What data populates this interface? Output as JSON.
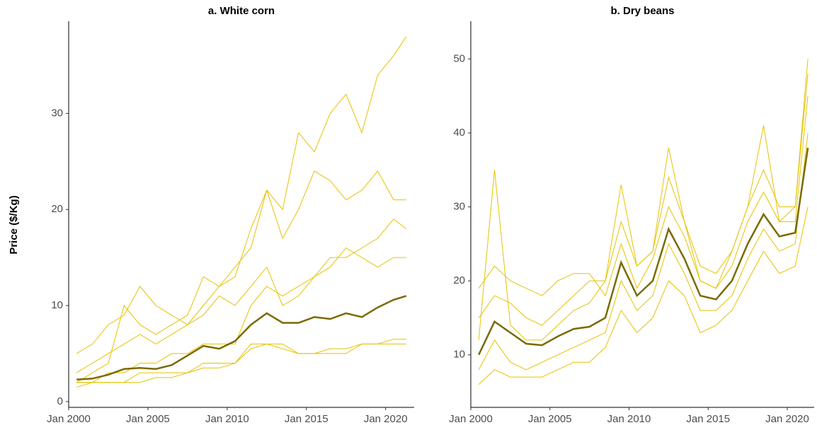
{
  "chart_data": [
    {
      "type": "line",
      "title": "a. White corn",
      "ylabel": "Price ($/Kg)",
      "x": [
        2000.5,
        2001.5,
        2002.5,
        2003.5,
        2004.5,
        2005.5,
        2006.5,
        2007.5,
        2008.5,
        2009.5,
        2010.5,
        2011.5,
        2012.5,
        2013.5,
        2014.5,
        2015.5,
        2016.5,
        2017.5,
        2018.5,
        2019.5,
        2020.5,
        2021.3
      ],
      "xlim": [
        2000,
        2021.8
      ],
      "xticks": [
        {
          "value": 2000,
          "label": "Jan 2000"
        },
        {
          "value": 2005,
          "label": "Jan 2005"
        },
        {
          "value": 2010,
          "label": "Jan 2010"
        },
        {
          "value": 2015,
          "label": "Jan 2015"
        },
        {
          "value": 2020,
          "label": "Jan 2020"
        }
      ],
      "ylim": [
        -0.6,
        39.6
      ],
      "yticks": [
        0,
        10,
        20,
        30
      ],
      "series": [
        {
          "color": "#e6c200",
          "values": [
            3,
            4,
            5,
            6,
            7,
            6,
            7,
            8,
            10,
            12,
            13,
            18,
            22,
            20,
            28,
            26,
            30,
            32,
            28,
            34,
            36,
            38
          ]
        },
        {
          "color": "#e6c200",
          "values": [
            2,
            3,
            4,
            10,
            8,
            7,
            8,
            9,
            13,
            12,
            14,
            16,
            22,
            17,
            20,
            24,
            23,
            21,
            22,
            24,
            21,
            21
          ]
        },
        {
          "color": "#e6c200",
          "values": [
            2,
            2,
            3,
            3,
            4,
            4,
            5,
            5,
            6,
            6,
            6,
            10,
            12,
            11,
            12,
            13,
            15,
            15,
            16,
            17,
            19,
            18
          ]
        },
        {
          "color": "#e6c200",
          "values": [
            2,
            2,
            2,
            2,
            3,
            3,
            3,
            3,
            4,
            4,
            4,
            6,
            6,
            6,
            5,
            5,
            5,
            5,
            6,
            6,
            6,
            6
          ]
        },
        {
          "color": "#e6c200",
          "values": [
            1.5,
            2,
            2,
            2,
            2,
            2.5,
            2.5,
            3,
            3.5,
            3.5,
            4,
            5.5,
            6,
            5.5,
            5,
            5,
            5.5,
            5.5,
            6,
            6,
            6.5,
            6.5
          ]
        },
        {
          "color": "#e6c200",
          "values": [
            5,
            6,
            8,
            9,
            12,
            10,
            9,
            8,
            9,
            11,
            10,
            12,
            14,
            10,
            11,
            13,
            14,
            16,
            15,
            14,
            15,
            15
          ]
        },
        {
          "color": "#7a6a00",
          "values": [
            2.3,
            2.4,
            2.8,
            3.4,
            3.5,
            3.4,
            3.8,
            4.8,
            5.8,
            5.5,
            6.3,
            8.0,
            9.2,
            8.2,
            8.2,
            8.8,
            8.6,
            9.2,
            8.8,
            9.8,
            10.6,
            11.0
          ]
        }
      ]
    },
    {
      "type": "line",
      "title": "b. Dry beans",
      "x": [
        2000.5,
        2001.5,
        2002.5,
        2003.5,
        2004.5,
        2005.5,
        2006.5,
        2007.5,
        2008.5,
        2009.5,
        2010.5,
        2011.5,
        2012.5,
        2013.5,
        2014.5,
        2015.5,
        2016.5,
        2017.5,
        2018.5,
        2019.5,
        2020.5,
        2021.3
      ],
      "xlim": [
        2000,
        2021.7
      ],
      "xticks": [
        {
          "value": 2000,
          "label": "Jan 2000"
        },
        {
          "value": 2005,
          "label": "Jan 2005"
        },
        {
          "value": 2010,
          "label": "Jan 2010"
        },
        {
          "value": 2015,
          "label": "Jan 2015"
        },
        {
          "value": 2020,
          "label": "Jan 2020"
        }
      ],
      "ylim": [
        2.9,
        55.1
      ],
      "yticks": [
        10,
        20,
        30,
        40,
        50
      ],
      "series": [
        {
          "color": "#e6c200",
          "values": [
            12,
            35,
            14,
            12,
            12,
            14,
            16,
            17,
            20,
            33,
            22,
            24,
            38,
            28,
            20,
            19,
            24,
            30,
            41,
            28,
            30,
            50
          ]
        },
        {
          "color": "#e6c200",
          "values": [
            8,
            12,
            9,
            8,
            9,
            10,
            11,
            12,
            13,
            20,
            16,
            18,
            25,
            21,
            16,
            16,
            18,
            23,
            27,
            24,
            25,
            40
          ]
        },
        {
          "color": "#e6c200",
          "values": [
            6,
            8,
            7,
            7,
            7,
            8,
            9,
            9,
            11,
            16,
            13,
            15,
            20,
            18,
            13,
            14,
            16,
            20,
            24,
            21,
            22,
            30
          ]
        },
        {
          "color": "#e6c200",
          "values": [
            15,
            18,
            17,
            15,
            14,
            16,
            18,
            20,
            20,
            28,
            22,
            24,
            34,
            28,
            22,
            21,
            24,
            30,
            35,
            30,
            30,
            48
          ]
        },
        {
          "color": "#e6c200",
          "values": [
            19,
            22,
            20,
            19,
            18,
            20,
            21,
            21,
            18,
            25,
            19,
            23,
            30,
            26,
            20,
            19,
            22,
            28,
            32,
            28,
            28,
            45
          ]
        },
        {
          "color": "#7a6a00",
          "values": [
            10,
            14.5,
            13,
            11.5,
            11.3,
            12.5,
            13.5,
            13.8,
            15,
            22.5,
            18,
            20,
            27,
            23,
            18,
            17.5,
            20,
            25,
            29,
            26,
            26.5,
            38
          ]
        }
      ]
    }
  ]
}
